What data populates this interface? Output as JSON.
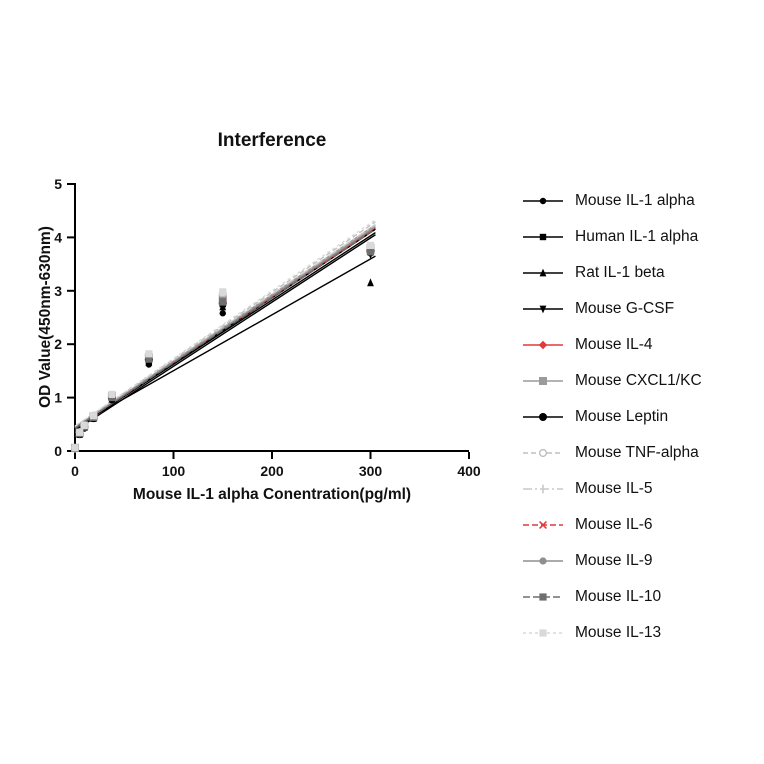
{
  "chart_data": {
    "type": "scatter",
    "title": "Interference",
    "xlabel": "Mouse IL-1 alpha Conentration(pg/ml)",
    "ylabel": "OD Value(450nm-630nm)",
    "xlim": [
      0,
      400
    ],
    "ylim": [
      0,
      5
    ],
    "xticks": [
      0,
      100,
      200,
      300,
      400
    ],
    "yticks": [
      0,
      1,
      2,
      3,
      4,
      5
    ],
    "legend_position": "right",
    "grid": false,
    "x": [
      0,
      4.7,
      9.4,
      18.8,
      37.5,
      75,
      150,
      300
    ],
    "line_extent": [
      0,
      305
    ],
    "series": [
      {
        "name": "Mouse IL-1 alpha",
        "color": "#000000",
        "marker": "circle",
        "dash": "",
        "size": 3.2,
        "values": [
          0.06,
          0.3,
          0.42,
          0.6,
          0.95,
          1.62,
          2.58,
          3.7
        ]
      },
      {
        "name": "Human IL-1 alpha",
        "color": "#000000",
        "marker": "square",
        "dash": "",
        "size": 3.2,
        "values": [
          0.05,
          0.33,
          0.45,
          0.63,
          1.0,
          1.7,
          2.75,
          3.75
        ]
      },
      {
        "name": "Rat IL-1 beta",
        "color": "#000000",
        "marker": "triangle-up",
        "dash": "",
        "size": 3.4,
        "values": [
          0.05,
          0.31,
          0.44,
          0.61,
          0.97,
          1.66,
          2.7,
          3.15
        ]
      },
      {
        "name": "Mouse G-CSF",
        "color": "#000000",
        "marker": "triangle-down",
        "dash": "",
        "size": 3.4,
        "values": [
          0.06,
          0.32,
          0.44,
          0.62,
          0.99,
          1.7,
          2.72,
          3.68
        ]
      },
      {
        "name": "Mouse IL-4",
        "color": "#e03a3a",
        "marker": "diamond",
        "dash": "",
        "size": 3.2,
        "values": [
          0.05,
          0.33,
          0.46,
          0.64,
          1.01,
          1.72,
          2.78,
          3.76
        ]
      },
      {
        "name": "Mouse CXCL1/KC",
        "color": "#9b9b9b",
        "marker": "square",
        "dash": "",
        "size": 4.0,
        "values": [
          0.06,
          0.34,
          0.47,
          0.65,
          1.03,
          1.75,
          2.85,
          3.8
        ]
      },
      {
        "name": "Mouse Leptin",
        "color": "#000000",
        "marker": "circle",
        "dash": "",
        "size": 4.0,
        "values": [
          0.05,
          0.32,
          0.45,
          0.62,
          1.0,
          1.71,
          2.76,
          3.74
        ]
      },
      {
        "name": "Mouse TNF-alpha",
        "color": "#bfbfbf",
        "marker": "open-circle",
        "dash": "5,3",
        "size": 3.4,
        "values": [
          0.06,
          0.35,
          0.48,
          0.66,
          1.05,
          1.8,
          2.95,
          3.82
        ]
      },
      {
        "name": "Mouse IL-5",
        "color": "#c9c9c9",
        "marker": "tick",
        "dash": "9,3,2,3",
        "size": 3.4,
        "values": [
          0.05,
          0.34,
          0.47,
          0.65,
          1.04,
          1.77,
          2.9,
          3.78
        ]
      },
      {
        "name": "Mouse IL-6",
        "color": "#e03a3a",
        "marker": "x",
        "dash": "6,3",
        "size": 3.4,
        "values": [
          0.05,
          0.33,
          0.46,
          0.63,
          1.01,
          1.73,
          2.8,
          3.75
        ]
      },
      {
        "name": "Mouse IL-9",
        "color": "#8f8f8f",
        "marker": "circle",
        "dash": "",
        "size": 3.6,
        "values": [
          0.06,
          0.34,
          0.46,
          0.64,
          1.02,
          1.74,
          2.82,
          3.77
        ]
      },
      {
        "name": "Mouse IL-10",
        "color": "#6f6f6f",
        "marker": "square",
        "dash": "7,3",
        "size": 3.6,
        "values": [
          0.05,
          0.33,
          0.45,
          0.63,
          1.0,
          1.72,
          2.79,
          3.73
        ]
      },
      {
        "name": "Mouse IL-13",
        "color": "#d9d9d9",
        "marker": "square",
        "dash": "3,3",
        "size": 3.6,
        "values": [
          0.06,
          0.35,
          0.48,
          0.66,
          1.06,
          1.82,
          2.98,
          3.85
        ]
      }
    ]
  }
}
